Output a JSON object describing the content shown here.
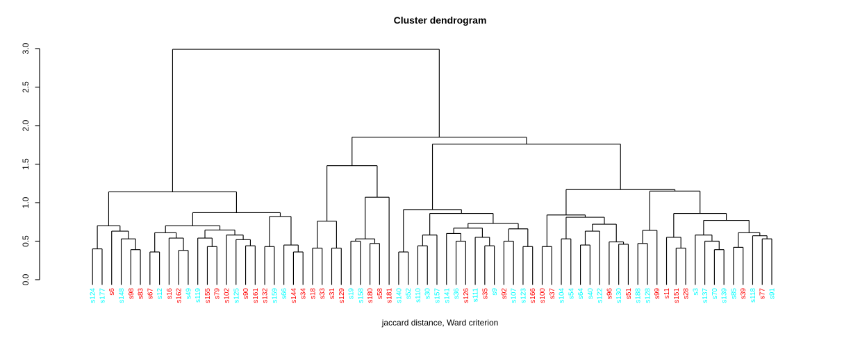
{
  "chart_data": {
    "type": "dendrogram",
    "title": "Cluster dendrogram",
    "xlabel": "jaccard distance, Ward criterion",
    "ylabel": "",
    "ylim": [
      0,
      3
    ],
    "yticks": [
      "0.0",
      "0.5",
      "1.0",
      "1.5",
      "2.0",
      "2.5",
      "3.0"
    ],
    "grid": false,
    "legend": "none",
    "line_color": "#000000",
    "colors": {
      "cyan": "#00FFFF",
      "red": "#FF0000"
    },
    "leaves": [
      {
        "label": "s124",
        "color": "cyan"
      },
      {
        "label": "s177",
        "color": "cyan"
      },
      {
        "label": "s6",
        "color": "red"
      },
      {
        "label": "s148",
        "color": "cyan"
      },
      {
        "label": "s98",
        "color": "red"
      },
      {
        "label": "s83",
        "color": "red"
      },
      {
        "label": "s67",
        "color": "red"
      },
      {
        "label": "s12",
        "color": "cyan"
      },
      {
        "label": "s16",
        "color": "red"
      },
      {
        "label": "s162",
        "color": "red"
      },
      {
        "label": "s49",
        "color": "cyan"
      },
      {
        "label": "s119",
        "color": "cyan"
      },
      {
        "label": "s155",
        "color": "red"
      },
      {
        "label": "s79",
        "color": "red"
      },
      {
        "label": "s102",
        "color": "red"
      },
      {
        "label": "s125",
        "color": "cyan"
      },
      {
        "label": "s90",
        "color": "red"
      },
      {
        "label": "s161",
        "color": "red"
      },
      {
        "label": "s132",
        "color": "red"
      },
      {
        "label": "s159",
        "color": "cyan"
      },
      {
        "label": "s66",
        "color": "cyan"
      },
      {
        "label": "s144",
        "color": "red"
      },
      {
        "label": "s34",
        "color": "red"
      },
      {
        "label": "s18",
        "color": "red"
      },
      {
        "label": "s33",
        "color": "red"
      },
      {
        "label": "s31",
        "color": "red"
      },
      {
        "label": "s129",
        "color": "red"
      },
      {
        "label": "s19",
        "color": "cyan"
      },
      {
        "label": "s158",
        "color": "cyan"
      },
      {
        "label": "s180",
        "color": "red"
      },
      {
        "label": "s58",
        "color": "red"
      },
      {
        "label": "s181",
        "color": "red"
      },
      {
        "label": "s140",
        "color": "cyan"
      },
      {
        "label": "s52",
        "color": "cyan"
      },
      {
        "label": "s110",
        "color": "cyan"
      },
      {
        "label": "s30",
        "color": "cyan"
      },
      {
        "label": "s157",
        "color": "cyan"
      },
      {
        "label": "s141",
        "color": "cyan"
      },
      {
        "label": "s36",
        "color": "cyan"
      },
      {
        "label": "s126",
        "color": "red"
      },
      {
        "label": "s111",
        "color": "cyan"
      },
      {
        "label": "s35",
        "color": "red"
      },
      {
        "label": "s9",
        "color": "cyan"
      },
      {
        "label": "s92",
        "color": "red"
      },
      {
        "label": "s107",
        "color": "cyan"
      },
      {
        "label": "s123",
        "color": "cyan"
      },
      {
        "label": "s166",
        "color": "red"
      },
      {
        "label": "s100",
        "color": "red"
      },
      {
        "label": "s37",
        "color": "red"
      },
      {
        "label": "s104",
        "color": "cyan"
      },
      {
        "label": "s54",
        "color": "cyan"
      },
      {
        "label": "s64",
        "color": "cyan"
      },
      {
        "label": "s40",
        "color": "cyan"
      },
      {
        "label": "s122",
        "color": "cyan"
      },
      {
        "label": "s96",
        "color": "red"
      },
      {
        "label": "s130",
        "color": "cyan"
      },
      {
        "label": "s51",
        "color": "red"
      },
      {
        "label": "s188",
        "color": "cyan"
      },
      {
        "label": "s128",
        "color": "cyan"
      },
      {
        "label": "s99",
        "color": "red"
      },
      {
        "label": "s11",
        "color": "red"
      },
      {
        "label": "s151",
        "color": "red"
      },
      {
        "label": "s28",
        "color": "red"
      },
      {
        "label": "s3",
        "color": "cyan"
      },
      {
        "label": "s137",
        "color": "cyan"
      },
      {
        "label": "s70",
        "color": "cyan"
      },
      {
        "label": "s139",
        "color": "cyan"
      },
      {
        "label": "s85",
        "color": "cyan"
      },
      {
        "label": "s39",
        "color": "red"
      },
      {
        "label": "s118",
        "color": "cyan"
      },
      {
        "label": "s77",
        "color": "red"
      },
      {
        "label": "s91",
        "color": "cyan"
      }
    ],
    "tree": [
      2.99,
      [
        1.14,
        [
          0.7,
          [
            0.4,
            "s124",
            "s177"
          ],
          [
            0.63,
            "s6",
            [
              0.53,
              "s148",
              [
                0.39,
                "s98",
                "s83"
              ]
            ]
          ]
        ],
        [
          0.87,
          [
            0.7,
            [
              0.61,
              [
                0.36,
                "s67",
                "s12"
              ],
              [
                0.54,
                "s16",
                [
                  0.38,
                  "s162",
                  "s49"
                ]
              ]
            ],
            [
              0.645,
              [
                0.54,
                "s119",
                [
                  0.43,
                  "s155",
                  "s79"
                ]
              ],
              [
                0.58,
                "s102",
                [
                  0.52,
                  "s125",
                  [
                    0.44,
                    "s90",
                    "s161"
                  ]
                ]
              ]
            ]
          ],
          [
            0.82,
            [
              0.43,
              "s132",
              "s159"
            ],
            [
              0.45,
              "s66",
              [
                0.36,
                "s144",
                "s34"
              ]
            ]
          ]
        ]
      ],
      [
        1.85,
        [
          1.48,
          [
            0.76,
            [
              0.41,
              "s18",
              "s33"
            ],
            [
              0.41,
              "s31",
              "s129"
            ]
          ],
          [
            1.07,
            [
              0.53,
              [
                0.5,
                "s19",
                "s158"
              ],
              [
                0.47,
                "s180",
                "s58"
              ]
            ],
            "s181"
          ]
        ],
        [
          1.76,
          [
            0.91,
            [
              0.36,
              "s140",
              "s52"
            ],
            [
              0.86,
              [
                0.58,
                [
                  0.44,
                  "s110",
                  "s30"
                ],
                "s157"
              ],
              [
                0.73,
                [
                  0.67,
                  [
                    0.6,
                    "s141",
                    [
                      0.5,
                      "s36",
                      "s126"
                    ]
                  ],
                  [
                    0.55,
                    "s111",
                    [
                      0.44,
                      "s35",
                      "s9"
                    ]
                  ]
                ],
                [
                  0.66,
                  [
                    0.5,
                    "s92",
                    "s107"
                  ],
                  [
                    0.43,
                    "s123",
                    "s166"
                  ]
                ]
              ]
            ]
          ],
          [
            1.17,
            [
              0.84,
              [
                0.43,
                "s100",
                "s37"
              ],
              [
                0.81,
                [
                  0.53,
                  "s104",
                  "s54"
                ],
                [
                  0.72,
                  [
                    0.63,
                    [
                      0.45,
                      "s64",
                      "s40"
                    ],
                    "s122"
                  ],
                  [
                    0.49,
                    "s96",
                    [
                      0.46,
                      "s130",
                      "s51"
                    ]
                  ]
                ]
              ]
            ],
            [
              1.15,
              [
                0.64,
                [
                  0.47,
                  "s188",
                  "s128"
                ],
                "s99"
              ],
              [
                0.86,
                [
                  0.55,
                  "s11",
                  [
                    0.41,
                    "s151",
                    "s28"
                  ]
                ],
                [
                  0.77,
                  [
                    0.58,
                    "s3",
                    [
                      0.5,
                      "s137",
                      [
                        0.39,
                        "s70",
                        "s139"
                      ]
                    ]
                  ],
                  [
                    0.61,
                    [
                      0.42,
                      "s85",
                      "s39"
                    ],
                    [
                      0.57,
                      "s118",
                      [
                        0.53,
                        "s77",
                        "s91"
                      ]
                    ]
                  ]
                ]
              ]
            ]
          ]
        ]
      ]
    ]
  }
}
